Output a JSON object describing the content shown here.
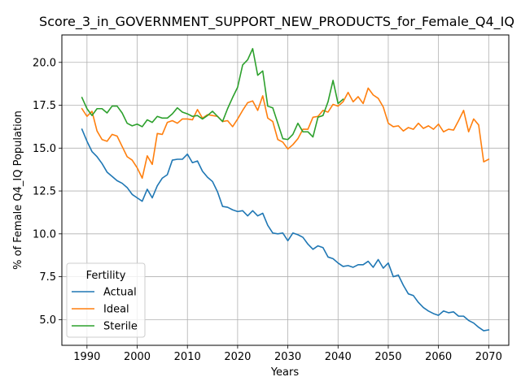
{
  "chart_data": {
    "type": "line",
    "title": "Score_3_in_GOVERNMENT_SUPPORT_NEW_PRODUCTS_for_Female_Q4_IQ",
    "xlabel": "Years",
    "ylabel": "% of Female Q4_IQ Population",
    "xlim": [
      1985,
      2074
    ],
    "ylim": [
      3.5,
      21.6
    ],
    "xticks": [
      1990,
      2000,
      2010,
      2020,
      2030,
      2040,
      2050,
      2060,
      2070
    ],
    "yticks": [
      5.0,
      7.5,
      10.0,
      12.5,
      15.0,
      17.5,
      20.0
    ],
    "grid": true,
    "legend": {
      "title": "Fertility",
      "location": "lower-left"
    },
    "series": [
      {
        "name": "Actual",
        "color": "#1f77b4",
        "x": [
          1989,
          1990,
          1991,
          1992,
          1993,
          1994,
          1995,
          1996,
          1997,
          1998,
          1999,
          2000,
          2001,
          2002,
          2003,
          2004,
          2005,
          2006,
          2007,
          2008,
          2009,
          2010,
          2011,
          2012,
          2013,
          2014,
          2015,
          2016,
          2017,
          2018,
          2019,
          2020,
          2021,
          2022,
          2023,
          2024,
          2025,
          2026,
          2027,
          2028,
          2029,
          2030,
          2031,
          2032,
          2033,
          2034,
          2035,
          2036,
          2037,
          2038,
          2039,
          2040,
          2041,
          2042,
          2043,
          2044,
          2045,
          2046,
          2047,
          2048,
          2049,
          2050,
          2051,
          2052,
          2053,
          2054,
          2055,
          2056,
          2057,
          2058,
          2059,
          2060,
          2061,
          2062,
          2063,
          2064,
          2065,
          2066,
          2067,
          2068,
          2069,
          2070
        ],
        "values": [
          16.1,
          15.4,
          14.8,
          14.5,
          14.1,
          13.6,
          13.35,
          13.1,
          12.95,
          12.7,
          12.3,
          12.1,
          11.9,
          12.6,
          12.1,
          12.8,
          13.25,
          13.45,
          14.3,
          14.35,
          14.35,
          14.65,
          14.15,
          14.25,
          13.65,
          13.3,
          13.05,
          12.45,
          11.6,
          11.55,
          11.4,
          11.3,
          11.35,
          11.05,
          11.35,
          11.05,
          11.2,
          10.5,
          10.05,
          10.0,
          10.05,
          9.6,
          10.05,
          9.95,
          9.8,
          9.4,
          9.1,
          9.3,
          9.2,
          8.65,
          8.55,
          8.3,
          8.1,
          8.15,
          8.05,
          8.2,
          8.2,
          8.4,
          8.05,
          8.5,
          8.0,
          8.3,
          7.5,
          7.6,
          7.0,
          6.5,
          6.4,
          6.0,
          5.7,
          5.5,
          5.35,
          5.25,
          5.5,
          5.4,
          5.45,
          5.2,
          5.2,
          4.95,
          4.8,
          4.55,
          4.35,
          4.4
        ]
      },
      {
        "name": "Ideal",
        "color": "#ff7f0e",
        "x": [
          1989,
          1990,
          1991,
          1992,
          1993,
          1994,
          1995,
          1996,
          1997,
          1998,
          1999,
          2000,
          2001,
          2002,
          2003,
          2004,
          2005,
          2006,
          2007,
          2008,
          2009,
          2010,
          2011,
          2012,
          2013,
          2014,
          2015,
          2016,
          2017,
          2018,
          2019,
          2020,
          2021,
          2022,
          2023,
          2024,
          2025,
          2026,
          2027,
          2028,
          2029,
          2030,
          2031,
          2032,
          2033,
          2034,
          2035,
          2036,
          2037,
          2038,
          2039,
          2040,
          2041,
          2042,
          2043,
          2044,
          2045,
          2046,
          2047,
          2048,
          2049,
          2050,
          2051,
          2052,
          2053,
          2054,
          2055,
          2056,
          2057,
          2058,
          2059,
          2060,
          2061,
          2062,
          2063,
          2064,
          2065,
          2066,
          2067,
          2068,
          2069,
          2070
        ],
        "values": [
          17.3,
          16.85,
          17.15,
          16.0,
          15.5,
          15.4,
          15.8,
          15.7,
          15.1,
          14.5,
          14.3,
          13.85,
          13.25,
          14.55,
          14.05,
          15.85,
          15.8,
          16.5,
          16.6,
          16.45,
          16.7,
          16.7,
          16.65,
          17.25,
          16.75,
          16.95,
          16.9,
          16.85,
          16.55,
          16.6,
          16.25,
          16.7,
          17.2,
          17.65,
          17.75,
          17.2,
          18.05,
          16.75,
          16.55,
          15.5,
          15.35,
          14.95,
          15.2,
          15.55,
          16.1,
          16.1,
          16.8,
          16.85,
          17.2,
          17.1,
          17.55,
          17.45,
          17.7,
          18.25,
          17.7,
          18.0,
          17.6,
          18.5,
          18.1,
          17.9,
          17.4,
          16.45,
          16.25,
          16.3,
          16.0,
          16.2,
          16.1,
          16.45,
          16.15,
          16.3,
          16.1,
          16.4,
          15.95,
          16.1,
          16.05,
          16.6,
          17.2,
          15.95,
          16.7,
          16.35,
          14.2,
          14.35
        ]
      },
      {
        "name": "Sterile",
        "color": "#2ca02c",
        "x": [
          1989,
          1990,
          1991,
          1992,
          1993,
          1994,
          1995,
          1996,
          1997,
          1998,
          1999,
          2000,
          2001,
          2002,
          2003,
          2004,
          2005,
          2006,
          2007,
          2008,
          2009,
          2010,
          2011,
          2012,
          2013,
          2014,
          2015,
          2016,
          2017,
          2018,
          2019,
          2020,
          2021,
          2022,
          2023,
          2024,
          2025,
          2026,
          2027,
          2028,
          2029,
          2030,
          2031,
          2032,
          2033,
          2034,
          2035,
          2036,
          2037,
          2038,
          2039,
          2040,
          2041
        ],
        "values": [
          17.95,
          17.3,
          16.9,
          17.3,
          17.3,
          17.05,
          17.45,
          17.45,
          17.05,
          16.45,
          16.3,
          16.4,
          16.25,
          16.65,
          16.5,
          16.85,
          16.75,
          16.75,
          17.0,
          17.35,
          17.1,
          17.0,
          16.85,
          16.9,
          16.7,
          16.9,
          17.15,
          16.85,
          16.55,
          17.3,
          17.95,
          18.55,
          19.85,
          20.15,
          20.8,
          19.25,
          19.5,
          17.45,
          17.35,
          16.45,
          15.55,
          15.5,
          15.8,
          16.45,
          15.95,
          15.95,
          15.65,
          16.8,
          16.9,
          17.7,
          18.95,
          17.6,
          17.85
        ]
      }
    ]
  }
}
